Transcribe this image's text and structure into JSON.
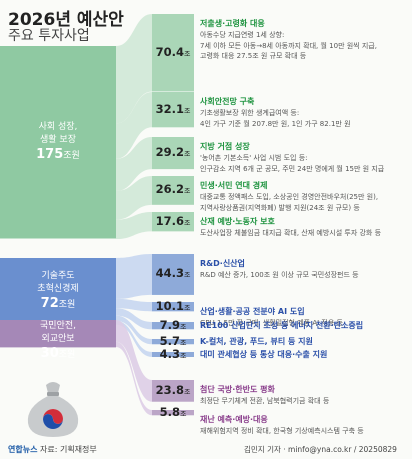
{
  "title": "2026년 예산안",
  "subtitle": "주요 투자사업",
  "unit": "조",
  "categories": [
    {
      "label_lines": [
        "사회 성장,",
        "생활 보장"
      ],
      "amount": "175",
      "unit": "조원",
      "color": "#8fc9a2"
    },
    {
      "label_lines": [
        "기술주도",
        "초혁신경제"
      ],
      "amount": "72",
      "unit": "조원",
      "color": "#6a8fcf"
    },
    {
      "label_lines": [
        "국민안전,",
        "외교안보"
      ],
      "amount": "30",
      "unit": "조원",
      "color": "#a588b7"
    }
  ],
  "chart_data": {
    "type": "sankey",
    "title": "2026년 예산안",
    "subtitle": "주요 투자사업",
    "unit": "조",
    "sources": [
      "사회 성장, 생활 보장",
      "기술주도 초혁신경제",
      "국민안전, 외교안보"
    ],
    "source_values": [
      175,
      72,
      30
    ],
    "items": [
      {
        "source": 0,
        "value": 70.4,
        "title": "저출생·고령화 대응",
        "desc": [
          "아동수당 지급연령 1세 상향:",
          "7세 이하 모든 아동→8세 아동까지 확대, 월 10만 원씩 지급,",
          "고령화 대응 27.5조 원 규모 확대 등"
        ]
      },
      {
        "source": 0,
        "value": 32.1,
        "title": "사회안전망 구축",
        "desc": [
          "기초생활보장 위한 생계급여액 등:",
          "4인 가구 기준 월 207.8만 원, 1인 가구 82.1만 원"
        ]
      },
      {
        "source": 0,
        "value": 29.2,
        "title": "지방 거점 성장",
        "desc": [
          "'농어촌 기본소득' 사업 시범 도입 등:",
          "인구감소 지역 6개 군 공모, 주민 24만 명에게 월 15만 원 지급"
        ]
      },
      {
        "source": 0,
        "value": 26.2,
        "title": "민생·서민 연대 경제",
        "desc": [
          "대중교통 정액패스 도입, 소상공인 경영안전바우처(25만 원),",
          "지역사랑상품권(지역화폐) 발행 지원(24조 원 규모) 등"
        ]
      },
      {
        "source": 0,
        "value": 17.6,
        "title": "산재 예방·노동자 보호",
        "desc": [
          "도산사업장 체불임금 대지급 확대, 산재 예방시설 투자 강화 등"
        ]
      },
      {
        "source": 1,
        "value": 44.3,
        "title": "R&D·신산업",
        "desc": [
          "R&D 예산 증가, 100조 원 이상 규모 국민성장펀드 등"
        ]
      },
      {
        "source": 1,
        "value": 10.1,
        "title": "산업·생활·공공 전분야 AI 도입",
        "desc": [
          "GPU 1.5만 장 구매, 생활밀접형 제품 AI 적용 등"
        ]
      },
      {
        "source": 1,
        "value": 7.9,
        "title": "RE100 산업단지 조성 등 에너지 전환·탄소중립",
        "desc": []
      },
      {
        "source": 1,
        "value": 5.7,
        "title": "K-컬처, 관광, 푸드, 뷰티 등 지원",
        "desc": []
      },
      {
        "source": 1,
        "value": 4.3,
        "title": "대미 관세협상 등 통상 대응·수출 지원",
        "desc": []
      },
      {
        "source": 2,
        "value": 23.8,
        "title": "첨단 국방·한반도 평화",
        "desc": [
          "최정단 무기체계 전환, 남북협력기금 확대 등"
        ]
      },
      {
        "source": 2,
        "value": 5.8,
        "title": "재난 예측·예방·대응",
        "desc": [
          "재해위험지역 정비 확대, 한국형 기상예측시스템 구축 등"
        ]
      }
    ]
  },
  "footer": {
    "source_logo": "연합뉴스",
    "source": "자료: 기획재정부",
    "credit": "김민지 기자 · minfo@yna.co.kr / 20250829"
  }
}
